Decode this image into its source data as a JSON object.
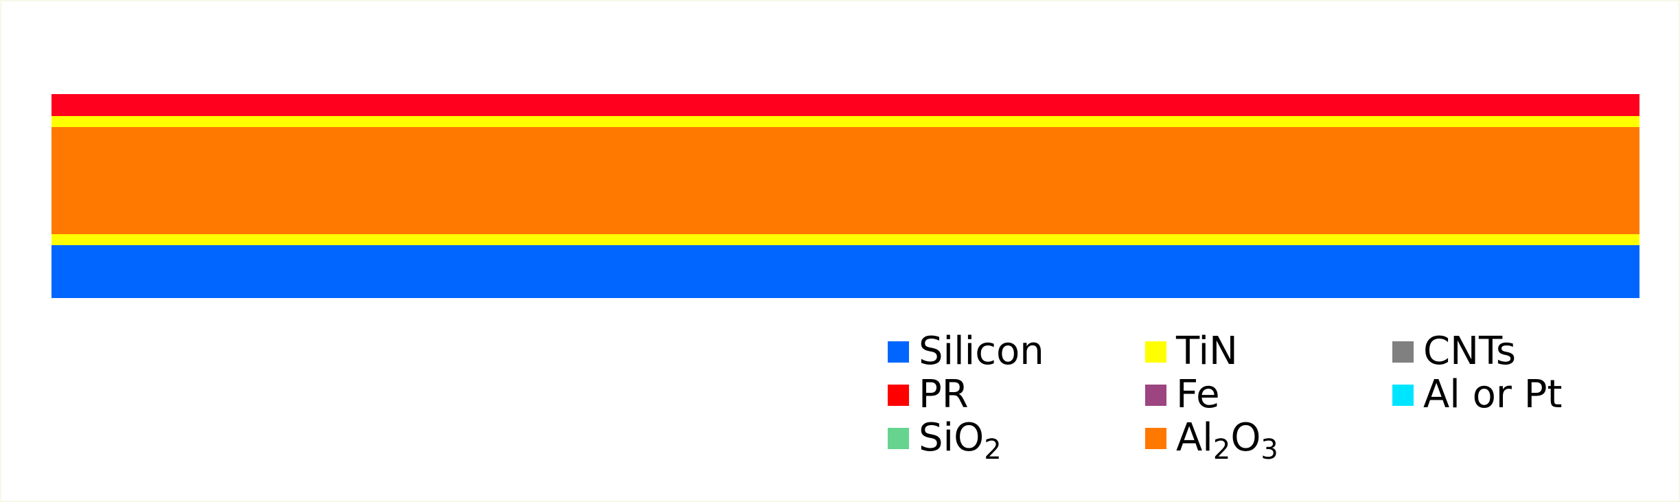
{
  "stack": {
    "layers": [
      {
        "material": "PR",
        "color": "#ff001e"
      },
      {
        "material": "TiN",
        "color": "#ffff00"
      },
      {
        "material": "Al₂O₃",
        "color": "#ff7800"
      },
      {
        "material": "TiN",
        "color": "#ffff00"
      },
      {
        "material": "Silicon",
        "color": "#0066ff"
      }
    ]
  },
  "legend": {
    "items": [
      {
        "label": "Silicon",
        "color": "#0066ff"
      },
      {
        "label": "PR",
        "color": "#ff0000"
      },
      {
        "label": "SiO₂",
        "label_base": "SiO",
        "label_sub": "2",
        "color": "#66d48f"
      },
      {
        "label": "TiN",
        "color": "#ffff00"
      },
      {
        "label": "Fe",
        "color": "#9c4580"
      },
      {
        "label": "Al₂O₃",
        "label_base": "Al",
        "label_sub": "2",
        "label_mid": "O",
        "label_sub2": "3",
        "color": "#ff7800"
      },
      {
        "label": "CNTs",
        "color": "#808080"
      },
      {
        "label": "Al or Pt",
        "color": "#00e5ff"
      }
    ]
  }
}
